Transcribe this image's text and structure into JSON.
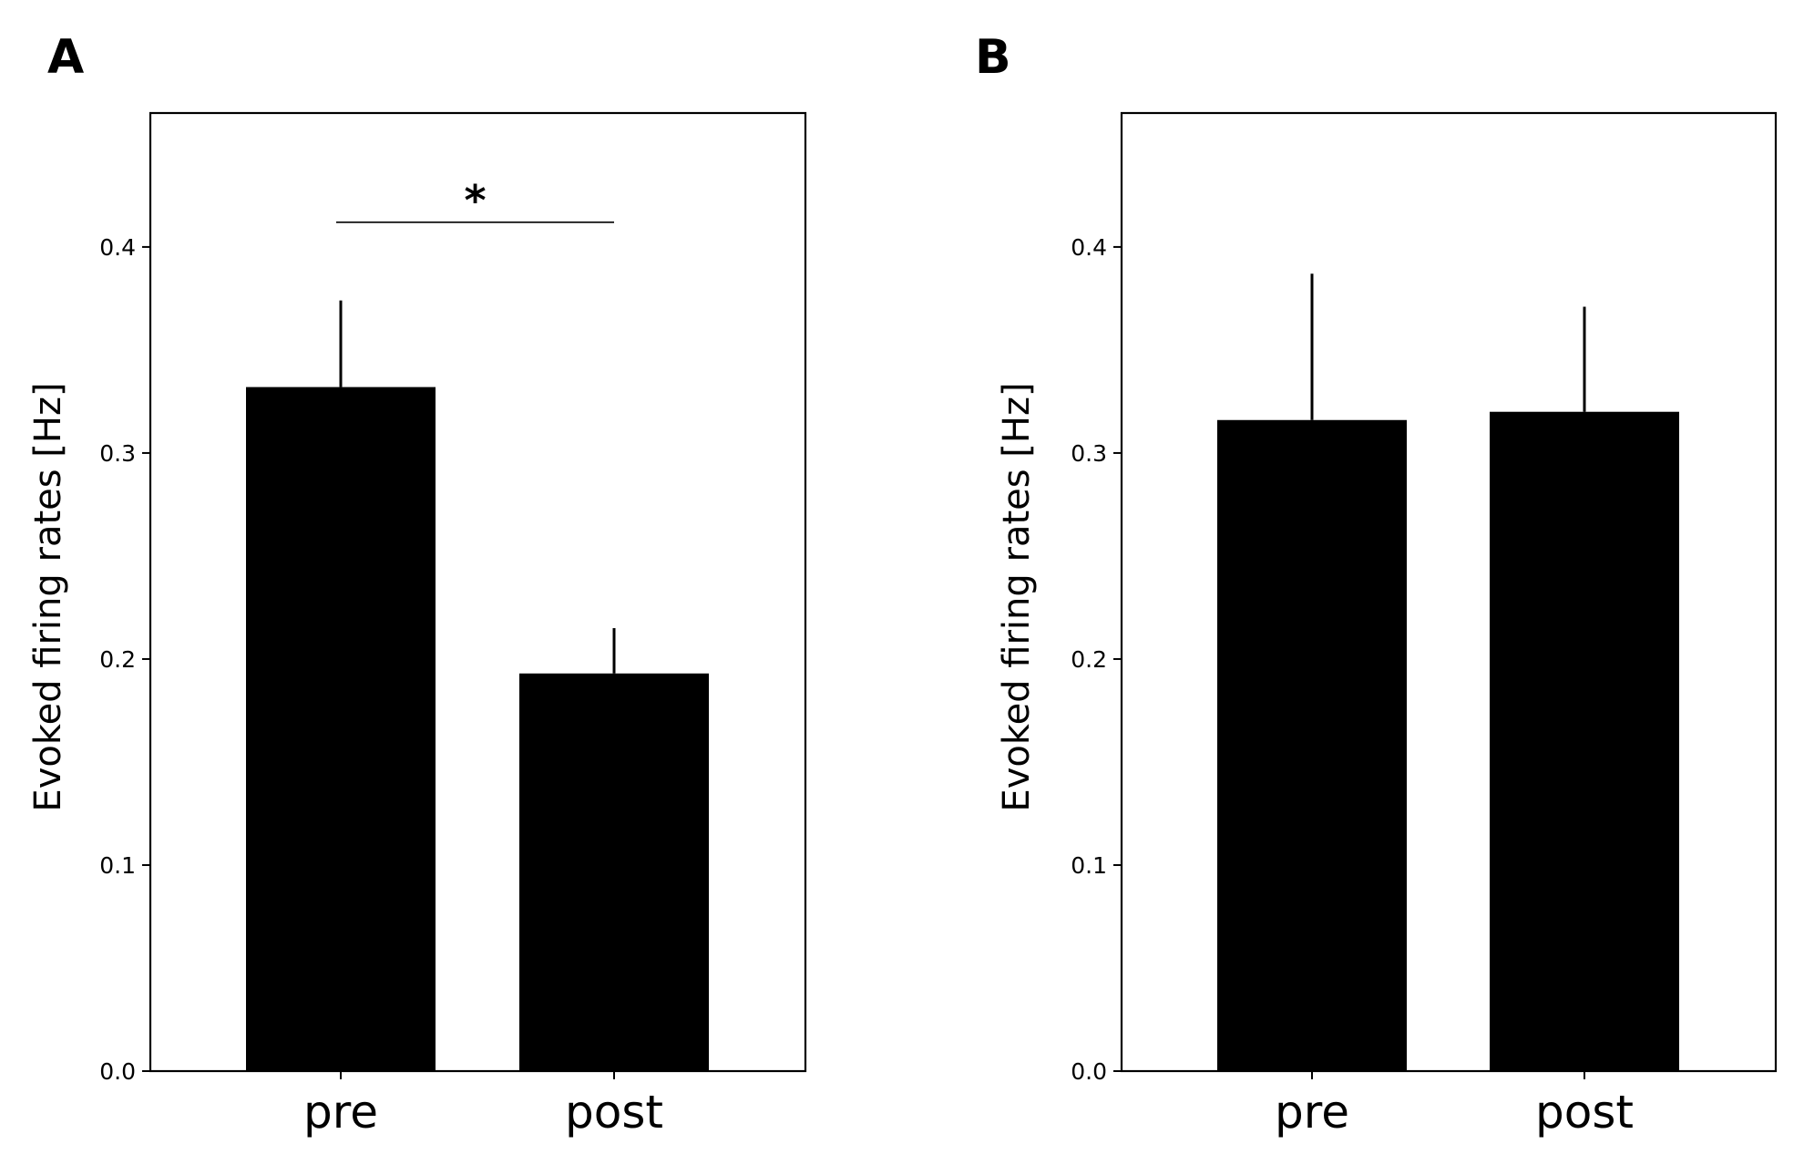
{
  "chart_data": [
    {
      "panel": "A",
      "type": "bar",
      "categories": [
        "pre",
        "post"
      ],
      "values": [
        0.332,
        0.193
      ],
      "error_plus": [
        0.042,
        0.022
      ],
      "ylabel": "Evoked firing rates [Hz]",
      "xlabel": "",
      "ylim": [
        0,
        0.465
      ],
      "yticks": [
        0.0,
        0.1,
        0.2,
        0.3,
        0.4
      ],
      "ytick_labels": [
        "0.0",
        "0.1",
        "0.2",
        "0.3",
        "0.4"
      ],
      "significance": {
        "label": "*",
        "between": [
          "pre",
          "post"
        ],
        "y": 0.412
      }
    },
    {
      "panel": "B",
      "type": "bar",
      "categories": [
        "pre",
        "post"
      ],
      "values": [
        0.316,
        0.32
      ],
      "error_plus": [
        0.071,
        0.051
      ],
      "ylabel": "Evoked firing rates [Hz]",
      "xlabel": "",
      "ylim": [
        0,
        0.465
      ],
      "yticks": [
        0.0,
        0.1,
        0.2,
        0.3,
        0.4
      ],
      "ytick_labels": [
        "0.0",
        "0.1",
        "0.2",
        "0.3",
        "0.4"
      ]
    }
  ]
}
